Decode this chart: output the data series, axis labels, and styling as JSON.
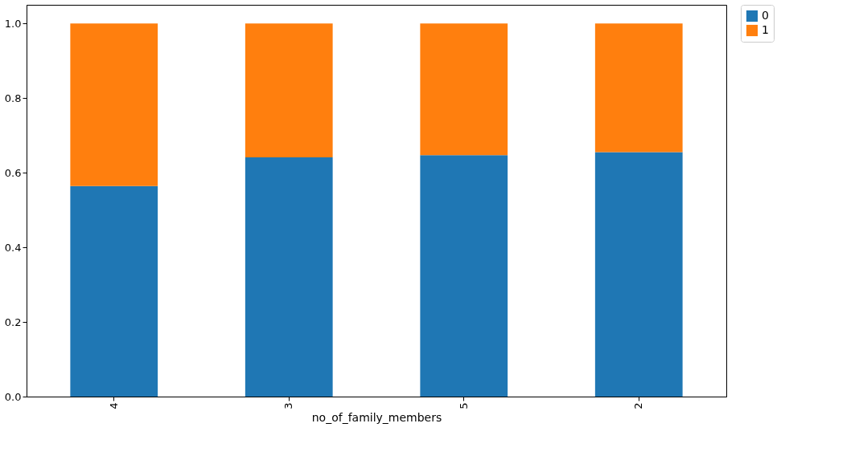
{
  "chart_data": {
    "type": "bar",
    "stacked": true,
    "xlabel": "no_of_family_members",
    "categories": [
      "4",
      "3",
      "5",
      "2"
    ],
    "series": [
      {
        "name": "0",
        "color": "#1f77b4",
        "values": [
          0.564,
          0.641,
          0.647,
          0.655
        ]
      },
      {
        "name": "1",
        "color": "#ff7f0e",
        "values": [
          0.436,
          0.359,
          0.353,
          0.345
        ]
      }
    ],
    "ylim": [
      0,
      1.05
    ],
    "yticks": [
      {
        "value": 0,
        "label": "0.0"
      },
      {
        "value": 0.2,
        "label": "0.2"
      },
      {
        "value": 0.4,
        "label": "0.4"
      },
      {
        "value": 0.6,
        "label": "0.6"
      },
      {
        "value": 0.8,
        "label": "0.8"
      },
      {
        "value": 1.0,
        "label": "1.0"
      }
    ],
    "grid": false,
    "legend": "right"
  }
}
